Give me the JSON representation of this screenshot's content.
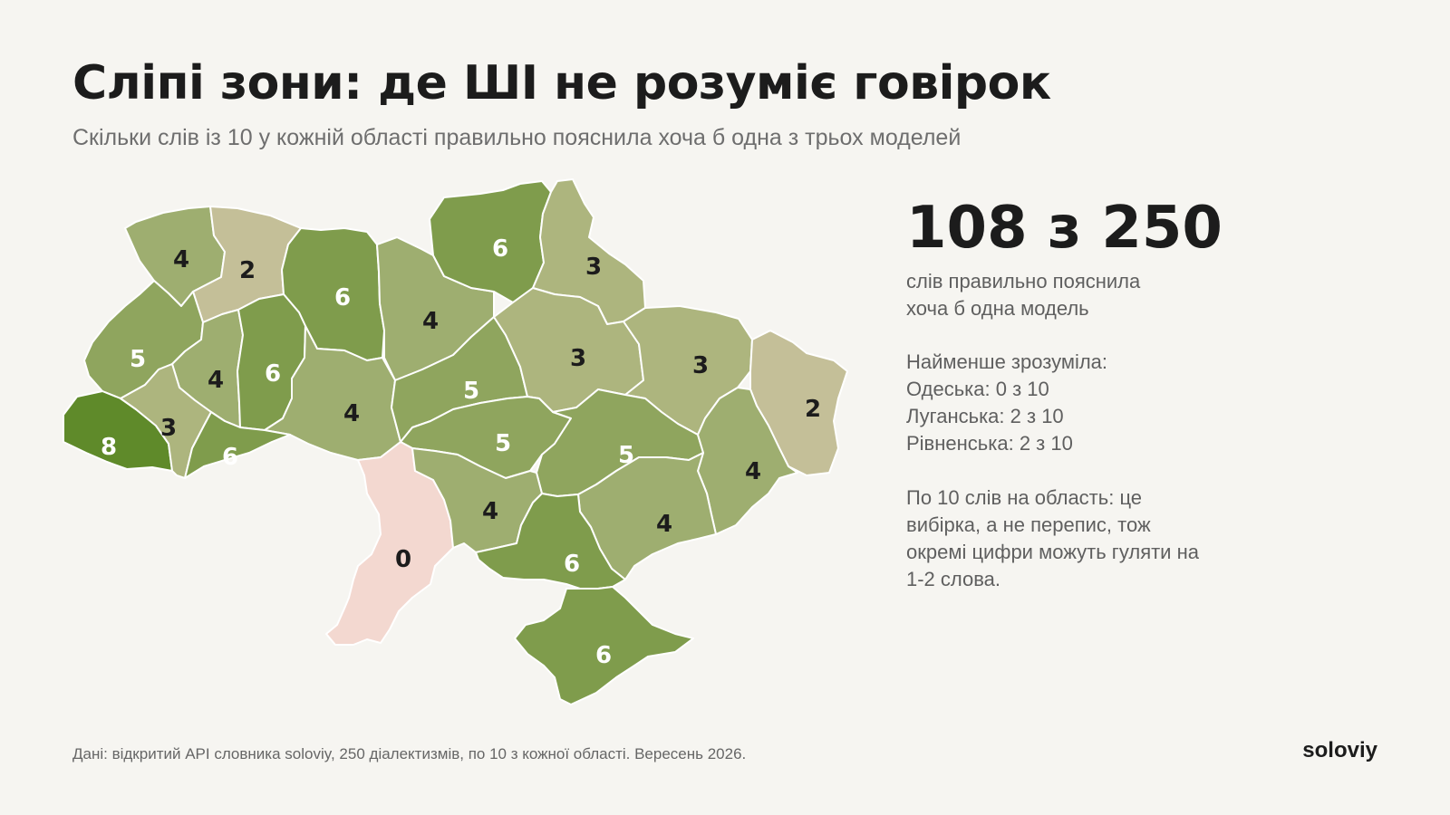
{
  "title": "Сліпі зони: де ШІ не розуміє говірок",
  "subtitle": "Скільки слів із 10 у кожній області правильно пояснила хоча б одна з трьох моделей",
  "summary": {
    "headline": "108 з 250",
    "caption_line1": "слів правильно пояснила",
    "caption_line2": "хоча б одна модель",
    "least_header": "Найменше зрозуміла:",
    "least": [
      "Одеська: 0 з 10",
      "Луганська: 2 з 10",
      "Рівненська: 2 з 10"
    ],
    "note": "По 10 слів на область: це вибірка, а не перепис, тож окремі цифри можуть гуляти на 1-2 слова."
  },
  "source": "Дані: відкритий API словника soloviy, 250 діалектизмів, по 10 з кожної області. Вересень 2026.",
  "brand": "soloviy",
  "color_scale": {
    "0": "#f3d8d0",
    "2": "#c4bf98",
    "3": "#adb57e",
    "4": "#9eae70",
    "5": "#8fa55e",
    "6": "#7f9c4c",
    "8": "#5f8a2a"
  },
  "label_colors": {
    "dark": "#1c1c1c",
    "light": "#ffffff"
  },
  "regions": [
    {
      "id": "volyn",
      "value": 4
    },
    {
      "id": "rivne",
      "value": 2
    },
    {
      "id": "zhytomyr",
      "value": 6
    },
    {
      "id": "kyiv",
      "value": 4
    },
    {
      "id": "chernihiv",
      "value": 6
    },
    {
      "id": "sumy",
      "value": 3
    },
    {
      "id": "lviv",
      "value": 5
    },
    {
      "id": "ternopil",
      "value": 4
    },
    {
      "id": "khmelnytskyi",
      "value": 6
    },
    {
      "id": "vinnytsia",
      "value": 4
    },
    {
      "id": "cherkasy",
      "value": 5
    },
    {
      "id": "poltava",
      "value": 3
    },
    {
      "id": "kharkiv",
      "value": 3
    },
    {
      "id": "luhansk",
      "value": 2
    },
    {
      "id": "zakarpattia",
      "value": 8
    },
    {
      "id": "ivano-frankivsk",
      "value": 3
    },
    {
      "id": "chernivtsi",
      "value": 6
    },
    {
      "id": "kirovohrad",
      "value": 5
    },
    {
      "id": "dnipropetrovsk",
      "value": 5
    },
    {
      "id": "donetsk",
      "value": 4
    },
    {
      "id": "odesa",
      "value": 0
    },
    {
      "id": "mykolaiv",
      "value": 4
    },
    {
      "id": "zaporizhzhia",
      "value": 4
    },
    {
      "id": "kherson",
      "value": 6
    },
    {
      "id": "crimea",
      "value": 6
    }
  ]
}
